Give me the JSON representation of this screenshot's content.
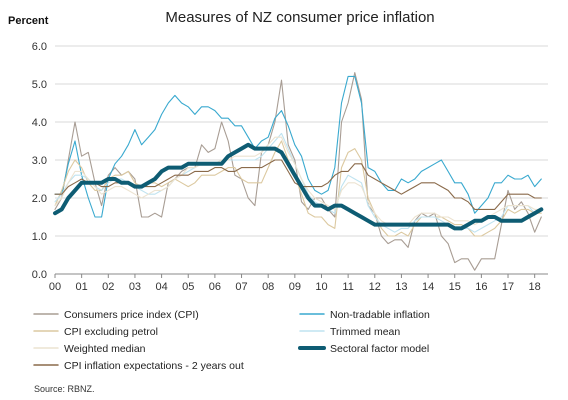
{
  "chart_data": {
    "type": "line",
    "title": "Measures of NZ consumer price inflation",
    "ylabel": "Percent",
    "xlabel": "",
    "ylim": [
      0,
      6
    ],
    "yticks": [
      "0.0",
      "1.0",
      "2.0",
      "3.0",
      "4.0",
      "5.0",
      "6.0"
    ],
    "xlim": [
      2000,
      2018.5
    ],
    "xtick_labels": [
      "00",
      "01",
      "02",
      "03",
      "04",
      "05",
      "06",
      "07",
      "08",
      "09",
      "10",
      "11",
      "12",
      "13",
      "14",
      "15",
      "16",
      "17",
      "18"
    ],
    "grid": "horizontal",
    "legend_position": "bottom",
    "source": "Source: RBNZ.",
    "x": [
      2000.0,
      2000.25,
      2000.5,
      2000.75,
      2001.0,
      2001.25,
      2001.5,
      2001.75,
      2002.0,
      2002.25,
      2002.5,
      2002.75,
      2003.0,
      2003.25,
      2003.5,
      2003.75,
      2004.0,
      2004.25,
      2004.5,
      2004.75,
      2005.0,
      2005.25,
      2005.5,
      2005.75,
      2006.0,
      2006.25,
      2006.5,
      2006.75,
      2007.0,
      2007.25,
      2007.5,
      2007.75,
      2008.0,
      2008.25,
      2008.5,
      2008.75,
      2009.0,
      2009.25,
      2009.5,
      2009.75,
      2010.0,
      2010.25,
      2010.5,
      2010.75,
      2011.0,
      2011.25,
      2011.5,
      2011.75,
      2012.0,
      2012.25,
      2012.5,
      2012.75,
      2013.0,
      2013.25,
      2013.5,
      2013.75,
      2014.0,
      2014.25,
      2014.5,
      2014.75,
      2015.0,
      2015.25,
      2015.5,
      2015.75,
      2016.0,
      2016.25,
      2016.5,
      2016.75,
      2017.0,
      2017.25,
      2017.5,
      2017.75,
      2018.0,
      2018.25
    ],
    "series": [
      {
        "name": "Consumers price index (CPI)",
        "color": "#a89d94",
        "width": 1.1,
        "values": [
          1.7,
          2.0,
          3.0,
          4.0,
          3.1,
          3.2,
          2.4,
          1.8,
          2.6,
          2.8,
          2.6,
          2.7,
          2.5,
          1.5,
          1.5,
          1.6,
          1.5,
          2.4,
          2.5,
          2.7,
          2.8,
          2.8,
          3.4,
          3.2,
          3.3,
          4.0,
          3.5,
          2.6,
          2.5,
          2.0,
          1.8,
          3.2,
          3.4,
          4.0,
          5.1,
          3.4,
          3.0,
          1.9,
          1.7,
          2.0,
          2.0,
          1.7,
          1.5,
          4.0,
          4.5,
          5.3,
          4.6,
          1.8,
          1.6,
          1.0,
          0.8,
          0.9,
          0.9,
          0.7,
          1.4,
          1.6,
          1.5,
          1.6,
          1.0,
          0.8,
          0.3,
          0.4,
          0.4,
          0.1,
          0.4,
          0.4,
          0.4,
          1.3,
          2.2,
          1.7,
          1.9,
          1.6,
          1.1,
          1.5
        ]
      },
      {
        "name": "Non-tradable inflation",
        "color": "#39a9cf",
        "width": 1.1,
        "values": [
          2.1,
          2.1,
          2.9,
          3.5,
          2.6,
          2.0,
          1.5,
          1.5,
          2.5,
          2.9,
          3.1,
          3.4,
          3.8,
          3.4,
          3.6,
          3.8,
          4.2,
          4.5,
          4.7,
          4.5,
          4.4,
          4.2,
          4.4,
          4.4,
          4.3,
          4.1,
          4.1,
          3.9,
          3.9,
          3.6,
          3.3,
          3.5,
          3.6,
          4.1,
          4.3,
          3.9,
          3.4,
          3.1,
          2.5,
          2.2,
          2.1,
          2.2,
          2.8,
          4.5,
          5.2,
          5.2,
          4.5,
          2.8,
          2.7,
          2.4,
          2.2,
          2.2,
          2.5,
          2.4,
          2.5,
          2.7,
          2.8,
          2.9,
          3.0,
          2.7,
          2.4,
          2.4,
          2.1,
          1.6,
          1.8,
          2.0,
          2.4,
          2.4,
          2.6,
          2.5,
          2.5,
          2.6,
          2.3,
          2.5
        ]
      },
      {
        "name": "CPI excluding petrol",
        "color": "#dcc9a0",
        "width": 1.1,
        "values": [
          1.8,
          2.2,
          2.7,
          3.0,
          2.8,
          2.4,
          2.2,
          2.2,
          2.5,
          2.6,
          2.6,
          2.7,
          2.4,
          2.3,
          2.4,
          2.4,
          2.3,
          2.4,
          2.5,
          2.4,
          2.3,
          2.4,
          2.6,
          2.6,
          2.6,
          2.7,
          2.8,
          2.8,
          2.5,
          2.4,
          2.4,
          2.4,
          2.8,
          3.2,
          3.5,
          3.0,
          2.6,
          2.1,
          1.6,
          1.5,
          1.5,
          1.3,
          1.2,
          2.8,
          3.2,
          3.3,
          3.0,
          2.0,
          1.6,
          1.2,
          1.0,
          1.0,
          1.1,
          1.0,
          1.3,
          1.5,
          1.5,
          1.5,
          1.5,
          1.4,
          1.3,
          1.3,
          1.2,
          1.0,
          1.0,
          1.1,
          1.2,
          1.4,
          1.7,
          1.6,
          1.7,
          1.7,
          1.6,
          1.6
        ]
      },
      {
        "name": "Trimmed mean",
        "color": "#bfe3f0",
        "width": 1.1,
        "values": [
          1.9,
          2.1,
          2.4,
          2.6,
          2.6,
          2.5,
          2.3,
          2.2,
          2.4,
          2.5,
          2.5,
          2.4,
          2.3,
          2.2,
          2.1,
          2.1,
          2.2,
          2.3,
          2.5,
          2.6,
          2.7,
          2.8,
          2.9,
          2.9,
          2.9,
          3.0,
          3.0,
          3.0,
          3.0,
          3.0,
          3.0,
          3.1,
          3.3,
          3.5,
          3.7,
          3.3,
          2.9,
          2.5,
          2.1,
          1.9,
          1.8,
          1.7,
          1.6,
          2.3,
          2.6,
          2.5,
          2.4,
          1.8,
          1.5,
          1.3,
          1.2,
          1.1,
          1.2,
          1.2,
          1.4,
          1.5,
          1.5,
          1.5,
          1.4,
          1.3,
          1.2,
          1.2,
          1.2,
          1.1,
          1.2,
          1.3,
          1.4,
          1.5,
          1.8,
          1.8,
          1.8,
          1.8,
          1.6,
          1.7
        ]
      },
      {
        "name": "Weighted median",
        "color": "#ece3d1",
        "width": 1.1,
        "values": [
          1.8,
          2.0,
          2.4,
          2.7,
          2.7,
          2.5,
          2.3,
          2.1,
          2.2,
          2.3,
          2.3,
          2.2,
          2.1,
          2.0,
          2.1,
          2.2,
          2.2,
          2.3,
          2.5,
          2.6,
          2.8,
          2.8,
          2.9,
          2.9,
          2.9,
          3.0,
          3.0,
          3.1,
          3.1,
          3.1,
          3.1,
          3.2,
          3.4,
          3.6,
          3.6,
          3.2,
          2.9,
          2.5,
          2.2,
          2.0,
          1.9,
          1.8,
          1.7,
          2.2,
          2.4,
          2.4,
          2.3,
          1.9,
          1.6,
          1.4,
          1.3,
          1.3,
          1.3,
          1.3,
          1.5,
          1.6,
          1.6,
          1.6,
          1.5,
          1.5,
          1.4,
          1.4,
          1.4,
          1.3,
          1.4,
          1.5,
          1.6,
          1.7,
          1.8,
          1.8,
          1.8,
          1.8,
          1.7,
          1.7
        ]
      },
      {
        "name": "Sectoral factor model",
        "color": "#0e5c73",
        "width": 4,
        "values": [
          1.6,
          1.7,
          2.0,
          2.2,
          2.4,
          2.4,
          2.4,
          2.4,
          2.5,
          2.5,
          2.4,
          2.4,
          2.3,
          2.3,
          2.4,
          2.5,
          2.7,
          2.8,
          2.8,
          2.8,
          2.9,
          2.9,
          2.9,
          2.9,
          2.9,
          2.9,
          3.1,
          3.2,
          3.3,
          3.4,
          3.3,
          3.3,
          3.3,
          3.3,
          3.2,
          2.9,
          2.6,
          2.3,
          2.0,
          1.8,
          1.8,
          1.7,
          1.8,
          1.8,
          1.7,
          1.6,
          1.5,
          1.4,
          1.3,
          1.3,
          1.3,
          1.3,
          1.3,
          1.3,
          1.3,
          1.3,
          1.3,
          1.3,
          1.3,
          1.3,
          1.2,
          1.2,
          1.3,
          1.4,
          1.4,
          1.5,
          1.5,
          1.4,
          1.4,
          1.4,
          1.4,
          1.5,
          1.6,
          1.7
        ]
      },
      {
        "name": "CPI inflation expectations - 2 years out",
        "color": "#8a6a4a",
        "width": 1.1,
        "values": [
          2.1,
          2.1,
          2.3,
          2.4,
          2.5,
          2.4,
          2.4,
          2.3,
          2.3,
          2.4,
          2.4,
          2.4,
          2.3,
          2.3,
          2.3,
          2.3,
          2.4,
          2.5,
          2.6,
          2.6,
          2.6,
          2.7,
          2.7,
          2.7,
          2.8,
          2.8,
          2.7,
          2.7,
          2.8,
          2.8,
          2.8,
          2.8,
          2.9,
          3.0,
          3.0,
          2.7,
          2.4,
          2.3,
          2.3,
          2.3,
          2.3,
          2.4,
          2.6,
          2.7,
          2.7,
          2.9,
          2.9,
          2.6,
          2.5,
          2.4,
          2.3,
          2.2,
          2.1,
          2.2,
          2.3,
          2.4,
          2.4,
          2.4,
          2.3,
          2.2,
          2.0,
          2.0,
          1.9,
          1.7,
          1.7,
          1.7,
          1.7,
          1.9,
          2.1,
          2.1,
          2.1,
          2.1,
          2.0,
          2.0
        ]
      }
    ]
  }
}
